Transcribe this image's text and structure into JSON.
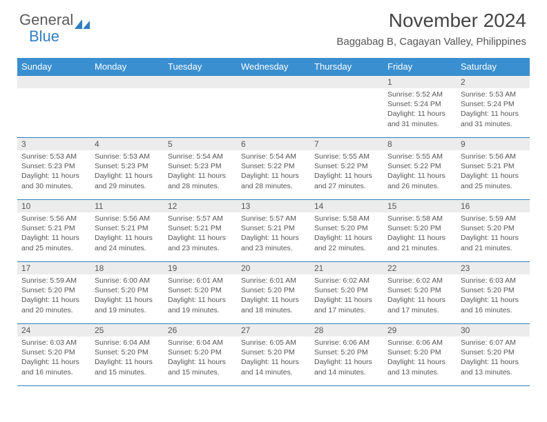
{
  "logo": {
    "text1": "General",
    "text2": "Blue",
    "icon_fill": "#2f7ec2"
  },
  "header": {
    "month_title": "November 2024",
    "location": "Baggabag B, Cagayan Valley, Philippines"
  },
  "colors": {
    "header_bg": "#3a8fd0",
    "daynum_bg": "#ececec",
    "border": "#2f7ec2",
    "text": "#555",
    "background": "#ffffff"
  },
  "day_headers": [
    "Sunday",
    "Monday",
    "Tuesday",
    "Wednesday",
    "Thursday",
    "Friday",
    "Saturday"
  ],
  "weeks": [
    [
      {
        "n": "",
        "sr": "",
        "ss": "",
        "dl": ""
      },
      {
        "n": "",
        "sr": "",
        "ss": "",
        "dl": ""
      },
      {
        "n": "",
        "sr": "",
        "ss": "",
        "dl": ""
      },
      {
        "n": "",
        "sr": "",
        "ss": "",
        "dl": ""
      },
      {
        "n": "",
        "sr": "",
        "ss": "",
        "dl": ""
      },
      {
        "n": "1",
        "sr": "Sunrise: 5:52 AM",
        "ss": "Sunset: 5:24 PM",
        "dl": "Daylight: 11 hours and 31 minutes."
      },
      {
        "n": "2",
        "sr": "Sunrise: 5:53 AM",
        "ss": "Sunset: 5:24 PM",
        "dl": "Daylight: 11 hours and 31 minutes."
      }
    ],
    [
      {
        "n": "3",
        "sr": "Sunrise: 5:53 AM",
        "ss": "Sunset: 5:23 PM",
        "dl": "Daylight: 11 hours and 30 minutes."
      },
      {
        "n": "4",
        "sr": "Sunrise: 5:53 AM",
        "ss": "Sunset: 5:23 PM",
        "dl": "Daylight: 11 hours and 29 minutes."
      },
      {
        "n": "5",
        "sr": "Sunrise: 5:54 AM",
        "ss": "Sunset: 5:23 PM",
        "dl": "Daylight: 11 hours and 28 minutes."
      },
      {
        "n": "6",
        "sr": "Sunrise: 5:54 AM",
        "ss": "Sunset: 5:22 PM",
        "dl": "Daylight: 11 hours and 28 minutes."
      },
      {
        "n": "7",
        "sr": "Sunrise: 5:55 AM",
        "ss": "Sunset: 5:22 PM",
        "dl": "Daylight: 11 hours and 27 minutes."
      },
      {
        "n": "8",
        "sr": "Sunrise: 5:55 AM",
        "ss": "Sunset: 5:22 PM",
        "dl": "Daylight: 11 hours and 26 minutes."
      },
      {
        "n": "9",
        "sr": "Sunrise: 5:56 AM",
        "ss": "Sunset: 5:21 PM",
        "dl": "Daylight: 11 hours and 25 minutes."
      }
    ],
    [
      {
        "n": "10",
        "sr": "Sunrise: 5:56 AM",
        "ss": "Sunset: 5:21 PM",
        "dl": "Daylight: 11 hours and 25 minutes."
      },
      {
        "n": "11",
        "sr": "Sunrise: 5:56 AM",
        "ss": "Sunset: 5:21 PM",
        "dl": "Daylight: 11 hours and 24 minutes."
      },
      {
        "n": "12",
        "sr": "Sunrise: 5:57 AM",
        "ss": "Sunset: 5:21 PM",
        "dl": "Daylight: 11 hours and 23 minutes."
      },
      {
        "n": "13",
        "sr": "Sunrise: 5:57 AM",
        "ss": "Sunset: 5:21 PM",
        "dl": "Daylight: 11 hours and 23 minutes."
      },
      {
        "n": "14",
        "sr": "Sunrise: 5:58 AM",
        "ss": "Sunset: 5:20 PM",
        "dl": "Daylight: 11 hours and 22 minutes."
      },
      {
        "n": "15",
        "sr": "Sunrise: 5:58 AM",
        "ss": "Sunset: 5:20 PM",
        "dl": "Daylight: 11 hours and 21 minutes."
      },
      {
        "n": "16",
        "sr": "Sunrise: 5:59 AM",
        "ss": "Sunset: 5:20 PM",
        "dl": "Daylight: 11 hours and 21 minutes."
      }
    ],
    [
      {
        "n": "17",
        "sr": "Sunrise: 5:59 AM",
        "ss": "Sunset: 5:20 PM",
        "dl": "Daylight: 11 hours and 20 minutes."
      },
      {
        "n": "18",
        "sr": "Sunrise: 6:00 AM",
        "ss": "Sunset: 5:20 PM",
        "dl": "Daylight: 11 hours and 19 minutes."
      },
      {
        "n": "19",
        "sr": "Sunrise: 6:01 AM",
        "ss": "Sunset: 5:20 PM",
        "dl": "Daylight: 11 hours and 19 minutes."
      },
      {
        "n": "20",
        "sr": "Sunrise: 6:01 AM",
        "ss": "Sunset: 5:20 PM",
        "dl": "Daylight: 11 hours and 18 minutes."
      },
      {
        "n": "21",
        "sr": "Sunrise: 6:02 AM",
        "ss": "Sunset: 5:20 PM",
        "dl": "Daylight: 11 hours and 17 minutes."
      },
      {
        "n": "22",
        "sr": "Sunrise: 6:02 AM",
        "ss": "Sunset: 5:20 PM",
        "dl": "Daylight: 11 hours and 17 minutes."
      },
      {
        "n": "23",
        "sr": "Sunrise: 6:03 AM",
        "ss": "Sunset: 5:20 PM",
        "dl": "Daylight: 11 hours and 16 minutes."
      }
    ],
    [
      {
        "n": "24",
        "sr": "Sunrise: 6:03 AM",
        "ss": "Sunset: 5:20 PM",
        "dl": "Daylight: 11 hours and 16 minutes."
      },
      {
        "n": "25",
        "sr": "Sunrise: 6:04 AM",
        "ss": "Sunset: 5:20 PM",
        "dl": "Daylight: 11 hours and 15 minutes."
      },
      {
        "n": "26",
        "sr": "Sunrise: 6:04 AM",
        "ss": "Sunset: 5:20 PM",
        "dl": "Daylight: 11 hours and 15 minutes."
      },
      {
        "n": "27",
        "sr": "Sunrise: 6:05 AM",
        "ss": "Sunset: 5:20 PM",
        "dl": "Daylight: 11 hours and 14 minutes."
      },
      {
        "n": "28",
        "sr": "Sunrise: 6:06 AM",
        "ss": "Sunset: 5:20 PM",
        "dl": "Daylight: 11 hours and 14 minutes."
      },
      {
        "n": "29",
        "sr": "Sunrise: 6:06 AM",
        "ss": "Sunset: 5:20 PM",
        "dl": "Daylight: 11 hours and 13 minutes."
      },
      {
        "n": "30",
        "sr": "Sunrise: 6:07 AM",
        "ss": "Sunset: 5:20 PM",
        "dl": "Daylight: 11 hours and 13 minutes."
      }
    ]
  ]
}
